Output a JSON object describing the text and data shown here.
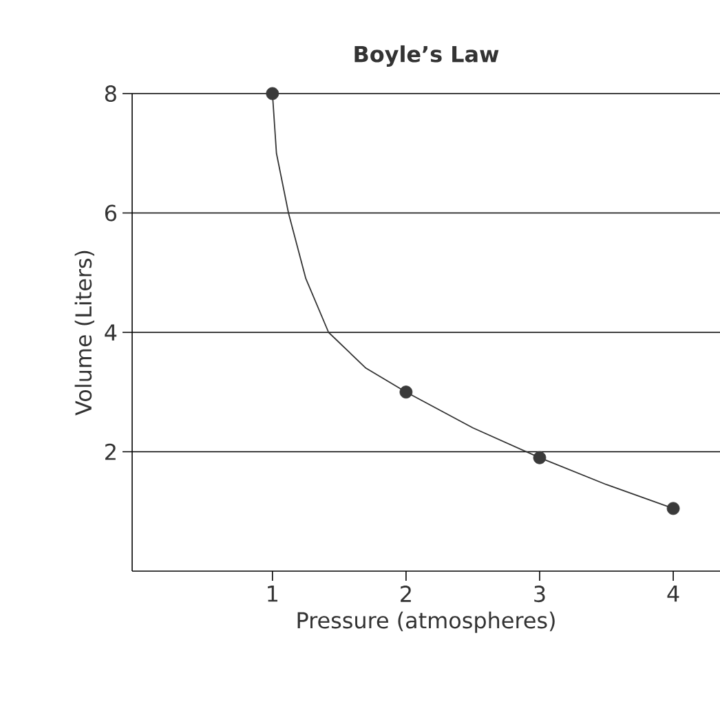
{
  "chart_data": {
    "type": "scatter",
    "title": "Boyle’s Law",
    "xlabel": "Pressure (atmospheres)",
    "ylabel": "Volume (Liters)",
    "xlim": [
      -0.05,
      4.35
    ],
    "ylim": [
      0,
      8
    ],
    "xticks": [
      1,
      2,
      3,
      4
    ],
    "yticks": [
      2,
      4,
      6,
      8
    ],
    "grid": "y",
    "marker": "circle",
    "series": [
      {
        "type": "line",
        "marker": "none",
        "color": "#333333",
        "x": [
          1,
          1.03,
          1.12,
          1.25,
          1.42,
          1.7,
          2,
          2.5,
          3,
          3.5,
          4
        ],
        "values": [
          8,
          7,
          6,
          4.9,
          4,
          3.4,
          3,
          2.4,
          1.9,
          1.45,
          1.05
        ]
      },
      {
        "color": "#3a3a3a",
        "x": [
          1,
          2,
          3,
          4
        ],
        "values": [
          8,
          3,
          1.9,
          1.05
        ]
      }
    ]
  }
}
